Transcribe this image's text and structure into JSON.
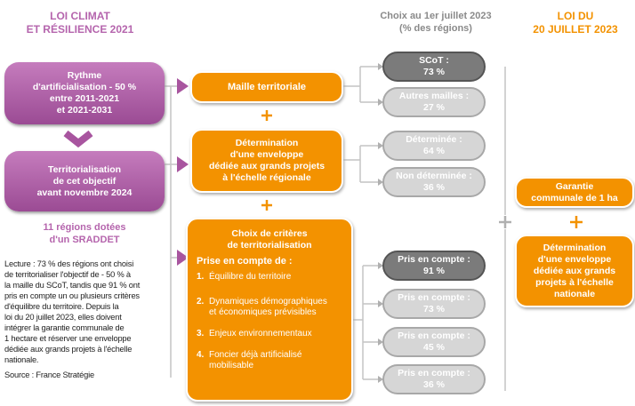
{
  "header": {
    "left": [
      "LOI CLIMAT",
      "ET RÉSILIENCE 2021"
    ],
    "middle": [
      "Choix au 1er juillet 2023",
      "(% des régions)"
    ],
    "right": [
      "LOI DU",
      "20 JUILLET 2023"
    ]
  },
  "left_boxes": [
    [
      "Rythme",
      "d'artificialisation - 50 %",
      "entre 2011-2021",
      "et 2021-2031"
    ],
    [
      "Territorialisation",
      "de cet objectif",
      "avant novembre 2024"
    ]
  ],
  "sraddet": [
    "11 régions dotées",
    "d'un SRADDET"
  ],
  "lecture": [
    "Lecture : 73 % des régions ont choisi",
    "de territorialiser l'objectif de  - 50 % à",
    "la maille du SCoT, tandis que 91 % ont",
    "pris en compte un ou plusieurs critères",
    "d'équilibre du territoire. Depuis la",
    "loi du 20 juillet 2023, elles doivent",
    "intégrer la garantie communale de",
    "1 hectare et réserver une enveloppe",
    "dédiée aux grands projets à l'échelle",
    "nationale."
  ],
  "source": "Source : France Stratégie",
  "choices": [
    {
      "title": [
        "Maille territoriale"
      ],
      "options": [
        {
          "label": "SCoT :",
          "value": "73 %"
        },
        {
          "label": "Autres mailles :",
          "value": "27 %"
        }
      ]
    },
    {
      "title": [
        "Détermination",
        "d'une enveloppe",
        "dédiée aux grands projets",
        "à l'échelle régionale"
      ],
      "options": [
        {
          "label": "Déterminée :",
          "value": "64 %"
        },
        {
          "label": "Non déterminée :",
          "value": "36 %"
        }
      ]
    },
    {
      "title": [
        "Choix de critères",
        "de territorialisation"
      ],
      "subtitle": "Prise en compte de :",
      "items": [
        {
          "number": "1.",
          "lines": [
            "Équilibre du territoire"
          ]
        },
        {
          "number": "2.",
          "lines": [
            "Dynamiques démographiques",
            "et économiques prévisibles"
          ]
        },
        {
          "number": "3.",
          "lines": [
            "Enjeux environnementaux"
          ]
        },
        {
          "number": "4.",
          "lines": [
            "Foncier déjà artificialisé",
            "mobilisable"
          ]
        }
      ],
      "options": [
        {
          "label": "Pris en compte :",
          "value": "91 %"
        },
        {
          "label": "Pris en compte :",
          "value": "73 %"
        },
        {
          "label": "Pris en compte :",
          "value": "45 %"
        },
        {
          "label": "Pris en compte :",
          "value": "36 %"
        }
      ]
    }
  ],
  "right_boxes": [
    [
      "Garantie",
      "communale de 1 ha"
    ],
    [
      "Détermination",
      "d'une enveloppe",
      "dédiée aux grands",
      "projets à l'échelle",
      "nationale"
    ]
  ]
}
